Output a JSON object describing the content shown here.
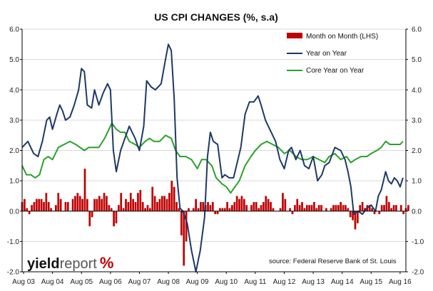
{
  "chart_data": {
    "type": "bar+line",
    "title": "US CPI CHANGES (%, s.a)",
    "ylim": [
      -2.0,
      6.0
    ],
    "y_ticks": [
      "-2.0",
      "-1.0",
      "0.0",
      "1.0",
      "2.0",
      "3.0",
      "4.0",
      "5.0",
      "6.0"
    ],
    "y_tick_values": [
      -2,
      -1,
      0,
      1,
      2,
      3,
      4,
      5,
      6
    ],
    "x_ticks": [
      "Aug 03",
      "Aug 04",
      "Aug 05",
      "Aug 06",
      "Aug 07",
      "Aug 08",
      "Aug 09",
      "Aug 10",
      "Aug 11",
      "Aug 12",
      "Aug 13",
      "Aug 14",
      "Aug 15",
      "Aug 16"
    ],
    "x_range_years": [
      2003.55,
      2016.8
    ],
    "grid": "horizontal",
    "legend_position": "top-right",
    "source": "source: Federal Reserve Bank of St. Louis",
    "logo": {
      "part1": "yield",
      "part2": "report",
      "symbol": "%"
    },
    "colors": {
      "mom": "#c00000",
      "yoy": "#1f3864",
      "core": "#2ca02c",
      "grid": "#d9d9d9",
      "axis": "#000000"
    },
    "series": [
      {
        "name": "Month on Month (LHS)",
        "kind": "bar",
        "start_year": 2003.55,
        "step_months": 1,
        "values": [
          0.3,
          0.4,
          0.1,
          -0.1,
          0.2,
          0.3,
          0.4,
          0.4,
          0.4,
          0.3,
          0.6,
          0.3,
          0.1,
          0.0,
          0.2,
          0.6,
          0.4,
          0.0,
          0.3,
          0.3,
          0.0,
          0.4,
          0.5,
          0.6,
          0.5,
          0.4,
          1.4,
          0.4,
          -0.5,
          -0.2,
          0.4,
          0.4,
          0.5,
          0.4,
          0.6,
          0.5,
          0.2,
          0.1,
          -0.5,
          -0.4,
          0.2,
          0.6,
          0.1,
          0.4,
          0.3,
          0.6,
          0.4,
          0.3,
          0.6,
          0.7,
          0.3,
          0.1,
          0.2,
          0.1,
          0.8,
          0.5,
          0.3,
          0.4,
          0.5,
          0.5,
          0.4,
          0.6,
          1.0,
          0.8,
          0.3,
          0.1,
          -0.8,
          -1.8,
          -1.0,
          0.1,
          0.0,
          0.1,
          0.4,
          0.1,
          0.3,
          0.3,
          0.2,
          0.3,
          0.2,
          0.3,
          -0.1,
          -0.1,
          0.1,
          0.1,
          0.1,
          0.3,
          0.1,
          0.2,
          0.3,
          0.5,
          0.4,
          0.5,
          0.4,
          0.2,
          0.0,
          0.2,
          0.3,
          0.3,
          0.1,
          0.2,
          0.3,
          0.5,
          0.4,
          0.3,
          0.1,
          0.0,
          0.0,
          0.1,
          0.6,
          0.4,
          0.0,
          0.1,
          -0.1,
          0.2,
          0.4,
          0.2,
          0.3,
          0.1,
          0.2,
          0.2,
          0.2,
          0.3,
          0.1,
          0.2,
          0.2,
          0.0,
          0.1,
          0.0,
          0.1,
          0.2,
          0.2,
          0.2,
          0.3,
          0.2,
          0.2,
          0.1,
          -0.2,
          -0.3,
          -0.6,
          -0.4,
          0.2,
          0.3,
          0.1,
          0.2,
          0.2,
          0.1,
          -0.1,
          0.0,
          -0.1,
          0.2,
          0.2,
          0.5,
          0.3,
          0.1,
          0.2,
          0.2,
          0.0,
          0.2,
          -0.1,
          0.1,
          0.2
        ]
      },
      {
        "name": "Year on Year",
        "kind": "line",
        "points": [
          [
            2003.55,
            2.1
          ],
          [
            2003.75,
            2.3
          ],
          [
            2003.95,
            1.9
          ],
          [
            2004.1,
            1.8
          ],
          [
            2004.25,
            2.3
          ],
          [
            2004.4,
            3.0
          ],
          [
            2004.5,
            3.1
          ],
          [
            2004.6,
            2.7
          ],
          [
            2004.75,
            3.2
          ],
          [
            2004.85,
            3.5
          ],
          [
            2004.95,
            3.3
          ],
          [
            2005.05,
            3.0
          ],
          [
            2005.2,
            3.1
          ],
          [
            2005.35,
            3.5
          ],
          [
            2005.5,
            4.0
          ],
          [
            2005.6,
            4.7
          ],
          [
            2005.7,
            4.6
          ],
          [
            2005.8,
            3.5
          ],
          [
            2005.95,
            3.4
          ],
          [
            2006.05,
            4.0
          ],
          [
            2006.2,
            3.5
          ],
          [
            2006.35,
            3.9
          ],
          [
            2006.5,
            4.2
          ],
          [
            2006.6,
            4.0
          ],
          [
            2006.7,
            2.0
          ],
          [
            2006.8,
            1.3
          ],
          [
            2006.95,
            2.0
          ],
          [
            2007.1,
            2.4
          ],
          [
            2007.25,
            2.8
          ],
          [
            2007.45,
            2.4
          ],
          [
            2007.6,
            2.0
          ],
          [
            2007.75,
            2.8
          ],
          [
            2007.85,
            4.3
          ],
          [
            2008.0,
            4.1
          ],
          [
            2008.15,
            4.0
          ],
          [
            2008.35,
            4.2
          ],
          [
            2008.5,
            5.0
          ],
          [
            2008.6,
            5.5
          ],
          [
            2008.7,
            5.3
          ],
          [
            2008.8,
            3.7
          ],
          [
            2008.9,
            1.1
          ],
          [
            2009.0,
            0.1
          ],
          [
            2009.1,
            0.0
          ],
          [
            2009.25,
            -0.4
          ],
          [
            2009.4,
            -1.3
          ],
          [
            2009.55,
            -2.0
          ],
          [
            2009.7,
            -1.3
          ],
          [
            2009.85,
            -0.2
          ],
          [
            2009.95,
            1.8
          ],
          [
            2010.05,
            2.6
          ],
          [
            2010.15,
            2.3
          ],
          [
            2010.3,
            2.2
          ],
          [
            2010.45,
            1.1
          ],
          [
            2010.55,
            1.2
          ],
          [
            2010.7,
            1.1
          ],
          [
            2010.85,
            1.1
          ],
          [
            2010.95,
            1.5
          ],
          [
            2011.1,
            2.1
          ],
          [
            2011.25,
            3.2
          ],
          [
            2011.4,
            3.6
          ],
          [
            2011.55,
            3.6
          ],
          [
            2011.7,
            3.8
          ],
          [
            2011.8,
            3.5
          ],
          [
            2011.95,
            3.0
          ],
          [
            2012.1,
            2.7
          ],
          [
            2012.3,
            2.3
          ],
          [
            2012.45,
            1.7
          ],
          [
            2012.6,
            1.4
          ],
          [
            2012.75,
            2.0
          ],
          [
            2012.85,
            2.1
          ],
          [
            2013.0,
            1.7
          ],
          [
            2013.15,
            2.0
          ],
          [
            2013.3,
            1.5
          ],
          [
            2013.45,
            1.4
          ],
          [
            2013.6,
            1.8
          ],
          [
            2013.75,
            1.0
          ],
          [
            2013.9,
            1.2
          ],
          [
            2014.0,
            1.5
          ],
          [
            2014.15,
            1.6
          ],
          [
            2014.35,
            2.1
          ],
          [
            2014.55,
            2.0
          ],
          [
            2014.7,
            1.7
          ],
          [
            2014.8,
            1.3
          ],
          [
            2014.9,
            0.8
          ],
          [
            2015.0,
            -0.1
          ],
          [
            2015.15,
            0.0
          ],
          [
            2015.3,
            -0.1
          ],
          [
            2015.45,
            0.1
          ],
          [
            2015.6,
            0.2
          ],
          [
            2015.75,
            0.0
          ],
          [
            2015.85,
            0.5
          ],
          [
            2015.95,
            0.7
          ],
          [
            2016.1,
            1.3
          ],
          [
            2016.2,
            1.0
          ],
          [
            2016.3,
            0.9
          ],
          [
            2016.4,
            1.1
          ],
          [
            2016.5,
            1.0
          ],
          [
            2016.6,
            0.8
          ],
          [
            2016.7,
            1.1
          ]
        ]
      },
      {
        "name": "Core Year on Year",
        "kind": "line",
        "points": [
          [
            2003.55,
            1.5
          ],
          [
            2003.7,
            1.2
          ],
          [
            2003.85,
            1.2
          ],
          [
            2004.0,
            1.1
          ],
          [
            2004.15,
            1.2
          ],
          [
            2004.3,
            1.7
          ],
          [
            2004.45,
            1.8
          ],
          [
            2004.6,
            1.7
          ],
          [
            2004.8,
            2.1
          ],
          [
            2005.0,
            2.2
          ],
          [
            2005.2,
            2.3
          ],
          [
            2005.4,
            2.2
          ],
          [
            2005.55,
            2.1
          ],
          [
            2005.7,
            2.0
          ],
          [
            2005.85,
            2.1
          ],
          [
            2006.0,
            2.1
          ],
          [
            2006.2,
            2.1
          ],
          [
            2006.4,
            2.4
          ],
          [
            2006.55,
            2.7
          ],
          [
            2006.65,
            2.9
          ],
          [
            2006.8,
            2.7
          ],
          [
            2006.95,
            2.6
          ],
          [
            2007.1,
            2.6
          ],
          [
            2007.25,
            2.3
          ],
          [
            2007.45,
            2.2
          ],
          [
            2007.6,
            2.1
          ],
          [
            2007.8,
            2.3
          ],
          [
            2007.95,
            2.4
          ],
          [
            2008.1,
            2.3
          ],
          [
            2008.3,
            2.3
          ],
          [
            2008.5,
            2.5
          ],
          [
            2008.7,
            2.4
          ],
          [
            2008.85,
            2.0
          ],
          [
            2009.0,
            1.8
          ],
          [
            2009.2,
            1.8
          ],
          [
            2009.4,
            1.7
          ],
          [
            2009.6,
            1.4
          ],
          [
            2009.75,
            1.7
          ],
          [
            2009.9,
            1.7
          ],
          [
            2010.1,
            1.5
          ],
          [
            2010.25,
            1.1
          ],
          [
            2010.45,
            0.9
          ],
          [
            2010.6,
            0.8
          ],
          [
            2010.75,
            0.6
          ],
          [
            2010.9,
            0.8
          ],
          [
            2011.05,
            1.0
          ],
          [
            2011.25,
            1.5
          ],
          [
            2011.45,
            1.8
          ],
          [
            2011.6,
            2.0
          ],
          [
            2011.8,
            2.2
          ],
          [
            2012.0,
            2.3
          ],
          [
            2012.2,
            2.2
          ],
          [
            2012.4,
            2.1
          ],
          [
            2012.6,
            1.9
          ],
          [
            2012.8,
            2.0
          ],
          [
            2013.0,
            1.8
          ],
          [
            2013.2,
            1.7
          ],
          [
            2013.4,
            1.7
          ],
          [
            2013.6,
            1.8
          ],
          [
            2013.8,
            1.7
          ],
          [
            2014.0,
            1.6
          ],
          [
            2014.15,
            1.8
          ],
          [
            2014.35,
            1.9
          ],
          [
            2014.55,
            1.7
          ],
          [
            2014.75,
            1.8
          ],
          [
            2014.9,
            1.6
          ],
          [
            2015.05,
            1.7
          ],
          [
            2015.25,
            1.8
          ],
          [
            2015.45,
            1.8
          ],
          [
            2015.6,
            1.9
          ],
          [
            2015.8,
            2.0
          ],
          [
            2015.95,
            2.1
          ],
          [
            2016.1,
            2.3
          ],
          [
            2016.25,
            2.2
          ],
          [
            2016.45,
            2.2
          ],
          [
            2016.6,
            2.2
          ],
          [
            2016.7,
            2.3
          ]
        ]
      }
    ]
  }
}
